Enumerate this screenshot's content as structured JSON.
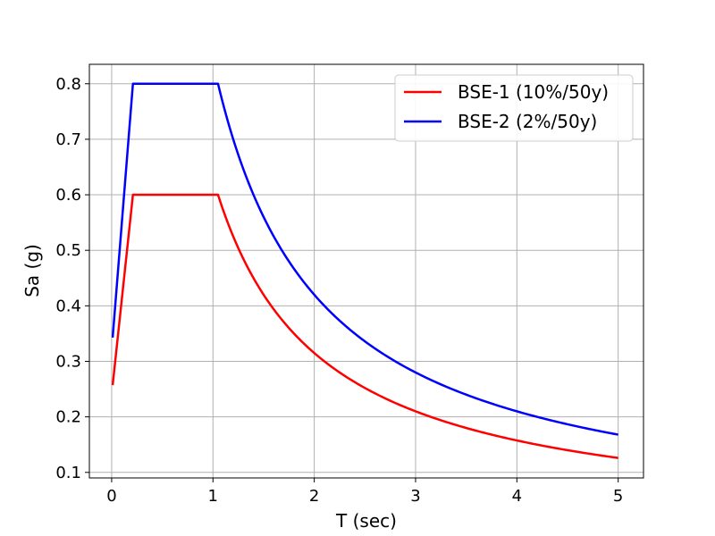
{
  "chart_data": {
    "type": "line",
    "title": "",
    "xlabel": "T (sec)",
    "ylabel": "Sa (g)",
    "xlim": [
      -0.22,
      5.25
    ],
    "ylim": [
      0.09,
      0.835
    ],
    "xticks": [
      0,
      1,
      2,
      3,
      4,
      5
    ],
    "xtick_labels": [
      "0",
      "1",
      "2",
      "3",
      "4",
      "5"
    ],
    "yticks": [
      0.1,
      0.2,
      0.3,
      0.4,
      0.5,
      0.6,
      0.7,
      0.8
    ],
    "ytick_labels": [
      "0.1",
      "0.2",
      "0.3",
      "0.4",
      "0.5",
      "0.6",
      "0.7",
      "0.8"
    ],
    "grid": true,
    "legend_position": "top-right",
    "series": [
      {
        "name": "BSE-1 (10%/50y)",
        "color": "#ff0000",
        "SDS": 0.6,
        "SD1": 0.63,
        "T0": 0.21,
        "TS": 1.05,
        "x_range": [
          0.01,
          5.0
        ]
      },
      {
        "name": "BSE-2 (2%/50y)",
        "color": "#0000ff",
        "SDS": 0.8,
        "SD1": 0.84,
        "T0": 0.21,
        "TS": 1.05,
        "x_range": [
          0.01,
          5.0
        ]
      }
    ]
  }
}
